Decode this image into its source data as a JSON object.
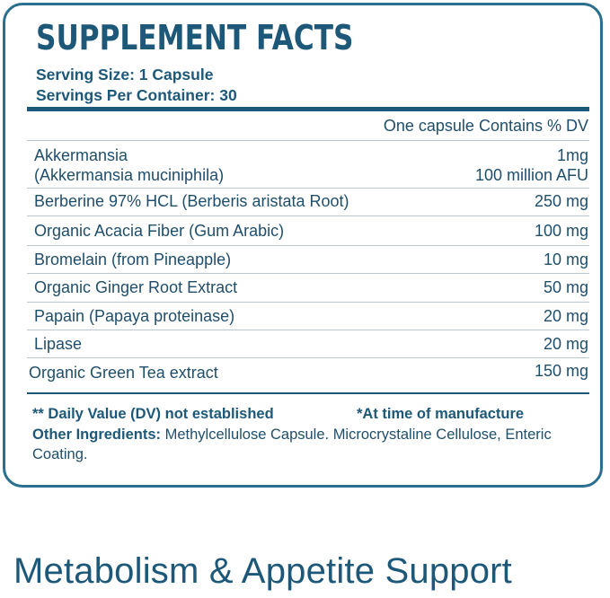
{
  "panel_title": "SUPPLEMENT FACTS",
  "serving_size": "Serving Size: 1 Capsule",
  "servings_per_container": "Servings Per Container: 30",
  "contains_header": "One capsule Contains % DV",
  "ingredients": [
    {
      "name": "Akkermansia",
      "name2": "(Akkermansia muciniphila)",
      "amount": "1mg",
      "amount2": "100 million AFU"
    },
    {
      "name": "Berberine 97% HCL (Berberis aristata Root)",
      "amount": "250 mg"
    },
    {
      "name": "Organic Acacia Fiber (Gum Arabic)",
      "amount": "100 mg"
    },
    {
      "name": "Bromelain (from Pineapple)",
      "amount": "10 mg"
    },
    {
      "name": "Organic Ginger Root Extract",
      "amount": "50 mg"
    },
    {
      "name": "Papain (Papaya proteinase)",
      "amount": "20 mg"
    },
    {
      "name": "Lipase",
      "amount": "20 mg"
    },
    {
      "name": "Organic Green Tea extract",
      "amount": "150 mg"
    }
  ],
  "footnote_dv": "** Daily Value (DV) not established",
  "footnote_manufacture": "*At time of manufacture",
  "other_ingredients_label": "Other Ingredients:",
  "other_ingredients_text": " Methylcellulose Capsule. Microcrystaline Cellulose, Enteric Coating.",
  "tagline": "Metabolism & Appetite Support",
  "colors": {
    "brand": "#1d5879",
    "border": "#2b6f8e",
    "rule": "#b9c7d2"
  }
}
